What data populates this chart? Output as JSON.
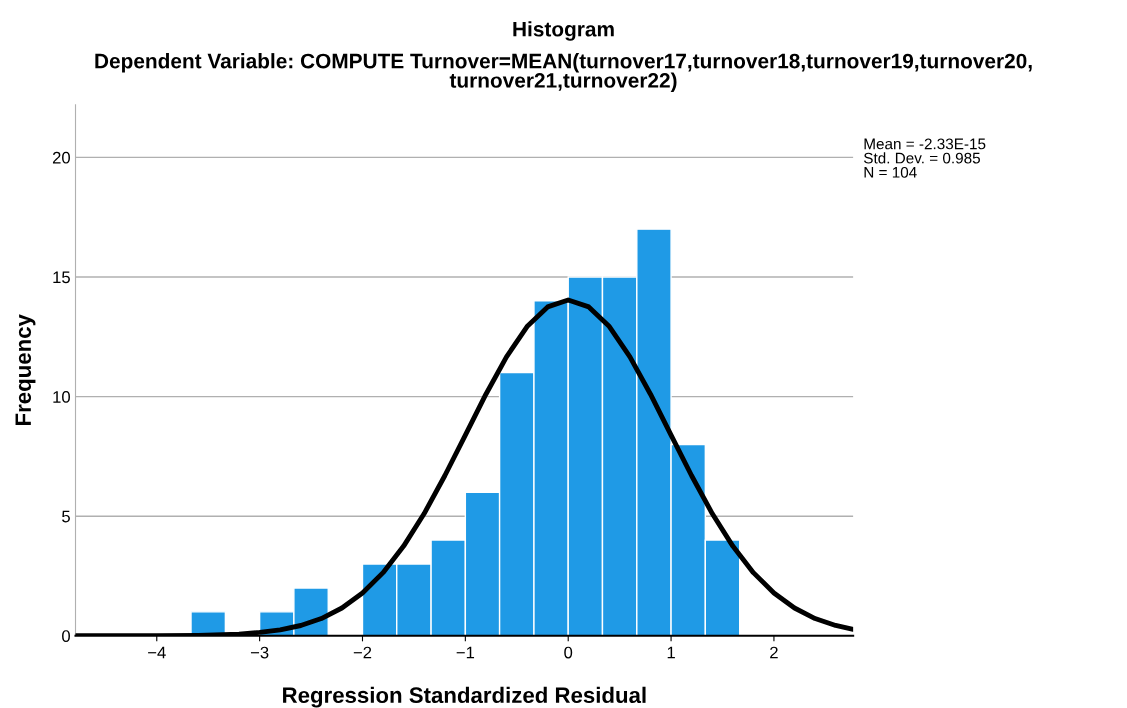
{
  "chart_data": {
    "type": "histogram",
    "title": "Histogram",
    "subtitle": "Dependent Variable: COMPUTE Turnover=MEAN(turnover17,turnover18,turnover19,turnover20,\nturnover21,turnover22)",
    "xlabel": "Regression Standardized Residual",
    "ylabel": "Frequency",
    "bins": [
      -3.667,
      -3.333,
      -3,
      -2.667,
      -2.333,
      -2,
      -1.667,
      -1.333,
      -1,
      -0.667,
      -0.333,
      0,
      0.333,
      0.667,
      1,
      1.333,
      1.667
    ],
    "values": [
      1,
      0,
      1,
      2,
      0,
      3,
      3,
      4,
      6,
      11,
      14,
      15,
      15,
      17,
      8,
      4
    ],
    "color": "#1f9ae6",
    "series": [
      {
        "type": "line",
        "color": "#000000",
        "x": [
          -4.79,
          -4.4,
          -4.0,
          -3.6,
          -3.2,
          -3.0,
          -2.8,
          -2.6,
          -2.4,
          -2.2,
          -2.0,
          -1.8,
          -1.6,
          -1.4,
          -1.2,
          -1.0,
          -0.8,
          -0.6,
          -0.4,
          -0.2,
          0,
          0.2,
          0.4,
          0.6,
          0.8,
          1.0,
          1.2,
          1.4,
          1.6,
          1.8,
          2.0,
          2.2,
          2.4,
          2.6,
          2.77
        ],
        "values": [
          0,
          0,
          0,
          0.02,
          0.07,
          0.14,
          0.25,
          0.43,
          0.72,
          1.16,
          1.79,
          2.64,
          3.75,
          5.11,
          6.69,
          8.39,
          10.1,
          11.66,
          12.93,
          13.75,
          14.04,
          13.75,
          12.93,
          11.66,
          10.1,
          8.39,
          6.69,
          5.11,
          3.75,
          2.64,
          1.79,
          1.16,
          0.72,
          0.43,
          0.27
        ]
      }
    ],
    "xlim": [
      -4.79,
      2.77
    ],
    "ylim": [
      0,
      22.2
    ],
    "xticks": [
      -4,
      -3,
      -2,
      -1,
      0,
      1,
      2
    ],
    "yticks": [
      0,
      5,
      10,
      15,
      20
    ],
    "grid": "y",
    "annotations": [
      "Mean = -2.33E-15\nStd. Dev. = 0.985\nN = 104"
    ]
  }
}
